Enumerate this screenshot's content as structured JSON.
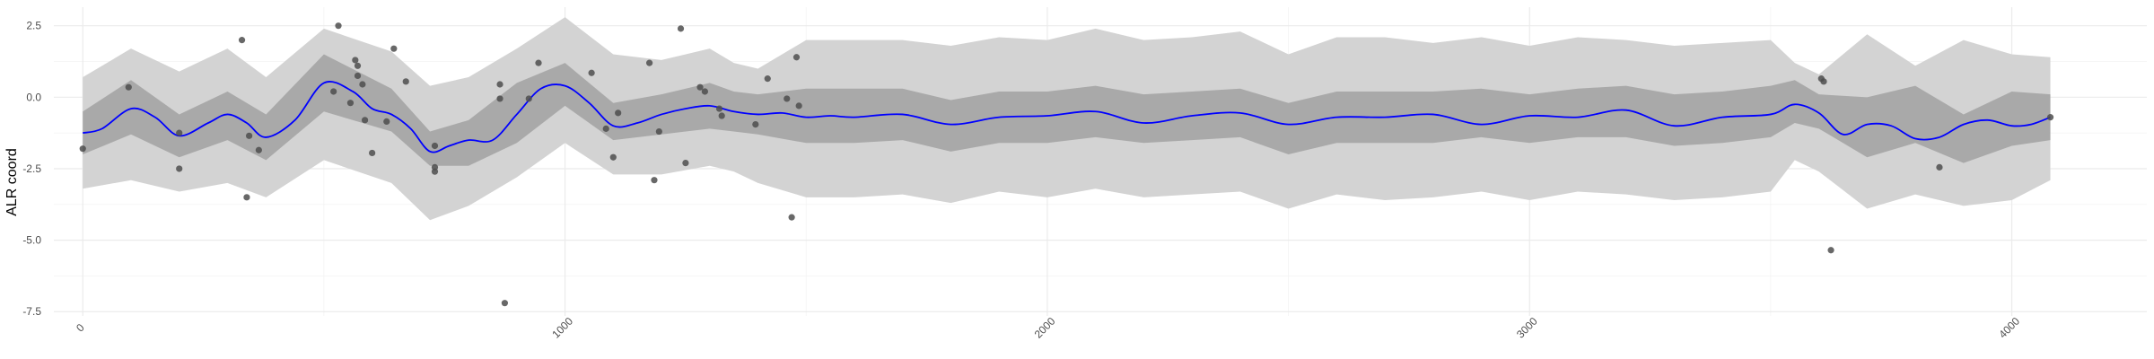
{
  "chart_data": {
    "type": "line",
    "title": "",
    "xlabel": "",
    "ylabel": "ALR coord",
    "xlim": [
      -60,
      4280
    ],
    "ylim": [
      -7.65,
      3.15
    ],
    "x_ticks": [
      0,
      1000,
      2000,
      3000,
      4000
    ],
    "x_tick_labels": [
      "0",
      "1000",
      "2000",
      "3000",
      "4000"
    ],
    "y_ticks": [
      2.5,
      0,
      -2.5,
      -5,
      -7.5
    ],
    "y_tick_labels": [
      "2.5",
      "0.0",
      "-2.5",
      "-5.0",
      "-7.5"
    ],
    "grid": true,
    "legend": "none",
    "colors": {
      "mean_line": "#0000ff",
      "inner_band": "#a9a9a9",
      "outer_band": "#d3d3d3",
      "points": "#4d4d4d",
      "grid": "#ebebeb"
    },
    "series": [
      {
        "kind": "band-outer",
        "x": [
          0,
          100,
          200,
          300,
          380,
          500,
          640,
          720,
          800,
          900,
          1000,
          1100,
          1200,
          1300,
          1350,
          1400,
          1500,
          1600,
          1700,
          1800,
          1900,
          2000,
          2100,
          2200,
          2300,
          2400,
          2500,
          2600,
          2700,
          2800,
          2900,
          3000,
          3100,
          3200,
          3300,
          3400,
          3500,
          3550,
          3600,
          3700,
          3800,
          3900,
          4000,
          4080
        ],
        "lower": [
          -3.2,
          -2.9,
          -3.3,
          -3.0,
          -3.5,
          -2.2,
          -3.0,
          -4.3,
          -3.8,
          -2.8,
          -1.6,
          -2.7,
          -2.7,
          -2.4,
          -2.6,
          -3.0,
          -3.5,
          -3.5,
          -3.4,
          -3.7,
          -3.3,
          -3.5,
          -3.2,
          -3.5,
          -3.4,
          -3.3,
          -3.9,
          -3.4,
          -3.6,
          -3.5,
          -3.3,
          -3.6,
          -3.3,
          -3.4,
          -3.6,
          -3.5,
          -3.3,
          -2.2,
          -2.6,
          -3.9,
          -3.4,
          -3.8,
          -3.6,
          -2.9
        ],
        "upper": [
          0.7,
          1.7,
          0.9,
          1.7,
          0.7,
          2.4,
          1.6,
          0.4,
          0.7,
          1.7,
          2.8,
          1.5,
          1.3,
          1.7,
          1.2,
          1.0,
          2.0,
          2.0,
          2.0,
          1.8,
          2.1,
          2.0,
          2.4,
          2.0,
          2.1,
          2.3,
          1.5,
          2.1,
          2.1,
          1.9,
          2.1,
          1.8,
          2.1,
          2.0,
          1.8,
          1.9,
          2.0,
          1.2,
          0.8,
          2.2,
          1.1,
          2.0,
          1.5,
          1.4
        ]
      },
      {
        "kind": "band-inner",
        "x": [
          0,
          100,
          200,
          300,
          380,
          500,
          640,
          720,
          800,
          900,
          1000,
          1100,
          1200,
          1300,
          1350,
          1400,
          1500,
          1600,
          1700,
          1800,
          1900,
          2000,
          2100,
          2200,
          2300,
          2400,
          2500,
          2600,
          2700,
          2800,
          2900,
          3000,
          3100,
          3200,
          3300,
          3400,
          3500,
          3550,
          3600,
          3700,
          3800,
          3900,
          4000,
          4080
        ],
        "lower": [
          -2.0,
          -1.3,
          -2.1,
          -1.5,
          -2.2,
          -0.5,
          -1.2,
          -2.4,
          -2.4,
          -1.6,
          -0.3,
          -1.5,
          -1.3,
          -1.1,
          -1.2,
          -1.3,
          -1.6,
          -1.6,
          -1.5,
          -1.9,
          -1.6,
          -1.6,
          -1.4,
          -1.6,
          -1.5,
          -1.4,
          -2.0,
          -1.6,
          -1.6,
          -1.6,
          -1.4,
          -1.6,
          -1.4,
          -1.4,
          -1.7,
          -1.6,
          -1.4,
          -0.9,
          -1.1,
          -2.1,
          -1.6,
          -2.3,
          -1.7,
          -1.5
        ],
        "upper": [
          -0.5,
          0.6,
          -0.6,
          0.2,
          -0.6,
          1.5,
          0.3,
          -1.2,
          -0.8,
          0.5,
          1.2,
          -0.2,
          0.1,
          0.5,
          0.2,
          0.1,
          0.3,
          0.3,
          0.3,
          -0.1,
          0.2,
          0.2,
          0.4,
          0.1,
          0.2,
          0.3,
          -0.2,
          0.2,
          0.2,
          0.2,
          0.3,
          0.1,
          0.3,
          0.4,
          0.1,
          0.2,
          0.4,
          0.6,
          0.1,
          0.0,
          0.4,
          -0.6,
          0.2,
          0.1
        ]
      },
      {
        "kind": "mean",
        "x": [
          0,
          40,
          100,
          150,
          200,
          260,
          300,
          340,
          380,
          440,
          500,
          560,
          600,
          640,
          680,
          720,
          760,
          800,
          850,
          900,
          950,
          1000,
          1050,
          1100,
          1150,
          1200,
          1250,
          1300,
          1350,
          1400,
          1450,
          1500,
          1550,
          1600,
          1700,
          1800,
          1900,
          2000,
          2100,
          2200,
          2300,
          2400,
          2500,
          2600,
          2700,
          2800,
          2900,
          3000,
          3100,
          3200,
          3300,
          3400,
          3500,
          3550,
          3600,
          3650,
          3700,
          3750,
          3800,
          3850,
          3900,
          3950,
          4000,
          4040,
          4080
        ],
        "y": [
          -1.25,
          -1.1,
          -0.4,
          -0.7,
          -1.35,
          -0.9,
          -0.6,
          -0.9,
          -1.4,
          -0.8,
          0.5,
          0.2,
          -0.4,
          -0.6,
          -1.1,
          -1.9,
          -1.7,
          -1.5,
          -1.5,
          -0.6,
          0.3,
          0.4,
          -0.2,
          -1.0,
          -0.9,
          -0.6,
          -0.4,
          -0.3,
          -0.5,
          -0.6,
          -0.55,
          -0.7,
          -0.65,
          -0.7,
          -0.6,
          -0.95,
          -0.7,
          -0.65,
          -0.5,
          -0.9,
          -0.65,
          -0.55,
          -0.95,
          -0.7,
          -0.7,
          -0.6,
          -0.95,
          -0.65,
          -0.7,
          -0.45,
          -1.0,
          -0.7,
          -0.6,
          -0.25,
          -0.55,
          -1.3,
          -0.95,
          -1.0,
          -1.45,
          -1.4,
          -0.95,
          -0.8,
          -1.0,
          -0.95,
          -0.7
        ]
      }
    ],
    "points": [
      {
        "x": 0,
        "y": -1.8
      },
      {
        "x": 95,
        "y": 0.35
      },
      {
        "x": 200,
        "y": -1.25
      },
      {
        "x": 200,
        "y": -2.5
      },
      {
        "x": 330,
        "y": 2.0
      },
      {
        "x": 340,
        "y": -3.5
      },
      {
        "x": 345,
        "y": -1.35
      },
      {
        "x": 365,
        "y": -1.85
      },
      {
        "x": 520,
        "y": 0.2
      },
      {
        "x": 530,
        "y": 2.5
      },
      {
        "x": 555,
        "y": -0.2
      },
      {
        "x": 565,
        "y": 1.3
      },
      {
        "x": 570,
        "y": 1.1
      },
      {
        "x": 570,
        "y": 0.75
      },
      {
        "x": 580,
        "y": 0.45
      },
      {
        "x": 585,
        "y": -0.8
      },
      {
        "x": 600,
        "y": -1.95
      },
      {
        "x": 630,
        "y": -0.85
      },
      {
        "x": 645,
        "y": 1.7
      },
      {
        "x": 670,
        "y": 0.55
      },
      {
        "x": 730,
        "y": -1.7
      },
      {
        "x": 730,
        "y": -2.45
      },
      {
        "x": 730,
        "y": -2.6
      },
      {
        "x": 865,
        "y": 0.45
      },
      {
        "x": 865,
        "y": -0.05
      },
      {
        "x": 875,
        "y": -7.2
      },
      {
        "x": 925,
        "y": -0.05
      },
      {
        "x": 945,
        "y": 1.2
      },
      {
        "x": 1055,
        "y": 0.85
      },
      {
        "x": 1085,
        "y": -1.1
      },
      {
        "x": 1100,
        "y": -2.1
      },
      {
        "x": 1110,
        "y": -0.55
      },
      {
        "x": 1175,
        "y": 1.2
      },
      {
        "x": 1185,
        "y": -2.9
      },
      {
        "x": 1195,
        "y": -1.2
      },
      {
        "x": 1240,
        "y": 2.4
      },
      {
        "x": 1250,
        "y": -2.3
      },
      {
        "x": 1280,
        "y": 0.35
      },
      {
        "x": 1290,
        "y": 0.2
      },
      {
        "x": 1320,
        "y": -0.4
      },
      {
        "x": 1325,
        "y": -0.65
      },
      {
        "x": 1395,
        "y": -0.95
      },
      {
        "x": 1420,
        "y": 0.65
      },
      {
        "x": 1460,
        "y": -0.05
      },
      {
        "x": 1470,
        "y": -4.2
      },
      {
        "x": 1480,
        "y": 1.4
      },
      {
        "x": 1485,
        "y": -0.3
      },
      {
        "x": 3605,
        "y": 0.65
      },
      {
        "x": 3610,
        "y": 0.55
      },
      {
        "x": 3625,
        "y": -5.35
      },
      {
        "x": 3850,
        "y": -2.45
      },
      {
        "x": 4080,
        "y": -0.7
      }
    ]
  }
}
